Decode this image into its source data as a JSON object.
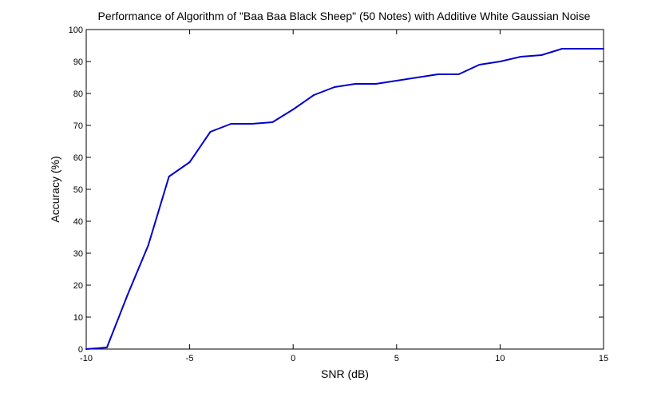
{
  "chart_data": {
    "type": "line",
    "title": "Performance of Algorithm of \"Baa Baa Black Sheep\" (50 Notes) with Additive White Gaussian Noise",
    "xlabel": "SNR (dB)",
    "ylabel": "Accuracy (%)",
    "xlim": [
      -10,
      15
    ],
    "ylim": [
      0,
      100
    ],
    "xticks": [
      -10,
      -5,
      0,
      5,
      10,
      15
    ],
    "yticks": [
      0,
      10,
      20,
      30,
      40,
      50,
      60,
      70,
      80,
      90,
      100
    ],
    "grid": false,
    "series": [
      {
        "color": "#0000cc",
        "x": [
          -10,
          -9,
          -8,
          -7,
          -6,
          -5,
          -4,
          -3,
          -2,
          -1,
          0,
          1,
          2,
          3,
          4,
          5,
          6,
          7,
          8,
          9,
          10,
          11,
          12,
          13,
          14,
          15
        ],
        "y": [
          0,
          0.5,
          17,
          32.5,
          54,
          58.5,
          68,
          70.5,
          70.5,
          71,
          75,
          79.5,
          82,
          83,
          83,
          84,
          85,
          86,
          86,
          89,
          90,
          91.5,
          92,
          94,
          94,
          94
        ]
      }
    ]
  }
}
